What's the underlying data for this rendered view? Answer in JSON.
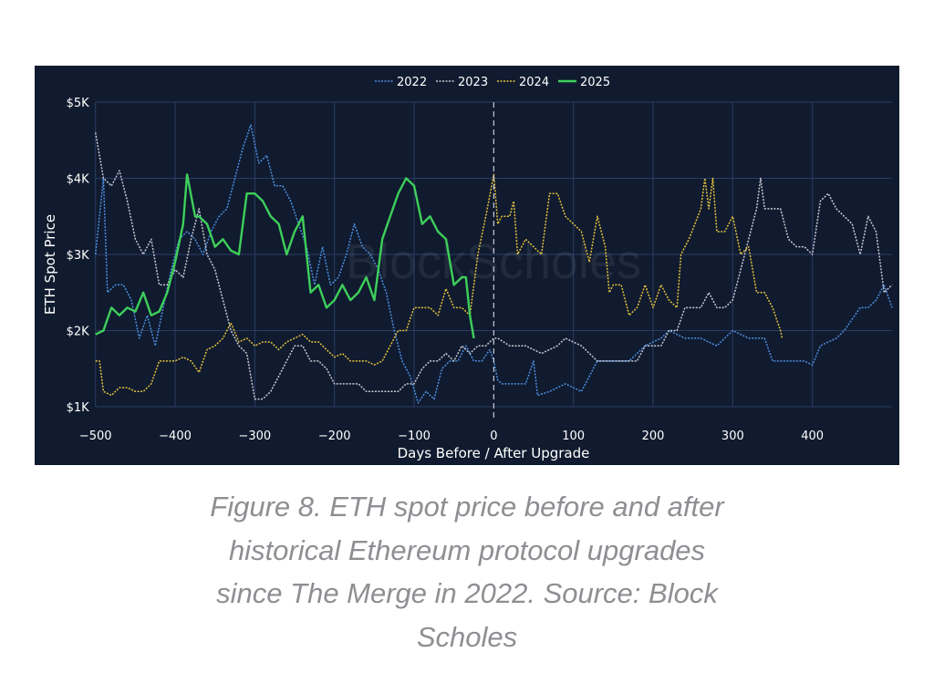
{
  "chart_data": {
    "type": "line",
    "title": "",
    "xlabel": "Days Before / After Upgrade",
    "ylabel": "ETH Spot Price",
    "xlim": [
      -500,
      500
    ],
    "ylim": [
      1000,
      5000
    ],
    "xticks": [
      -500,
      -400,
      -300,
      -200,
      -100,
      0,
      100,
      200,
      300,
      400
    ],
    "xtick_labels": [
      "−500",
      "−400",
      "−300",
      "−200",
      "−100",
      "0",
      "100",
      "200",
      "300",
      "400"
    ],
    "yticks": [
      1000,
      2000,
      3000,
      4000,
      5000
    ],
    "ytick_labels": [
      "$1K",
      "$2K",
      "$3K",
      "$4K",
      "$5K"
    ],
    "grid": true,
    "legend_position": "top-center",
    "upgrade_marker_x": 0,
    "watermark": "BlockScholes",
    "series": [
      {
        "name": "2022",
        "color": "#4d8fe0",
        "style": "dotted",
        "x": [
          -500,
          -490,
          -485,
          -475,
          -465,
          -455,
          -445,
          -435,
          -425,
          -415,
          -405,
          -395,
          -385,
          -375,
          -365,
          -355,
          -345,
          -335,
          -325,
          -315,
          -305,
          -295,
          -285,
          -275,
          -265,
          -255,
          -245,
          -235,
          -225,
          -215,
          -205,
          -195,
          -185,
          -175,
          -165,
          -155,
          -145,
          -135,
          -125,
          -115,
          -105,
          -95,
          -85,
          -75,
          -65,
          -55,
          -45,
          -35,
          -25,
          -15,
          -5,
          0,
          5,
          10,
          25,
          40,
          50,
          55,
          70,
          90,
          110,
          130,
          150,
          170,
          190,
          210,
          220,
          240,
          260,
          280,
          300,
          320,
          340,
          350,
          370,
          390,
          400,
          410,
          430,
          440,
          460,
          470,
          480,
          490,
          500
        ],
        "y": [
          3000,
          4000,
          2500,
          2600,
          2600,
          2400,
          1900,
          2200,
          1800,
          2300,
          2800,
          3200,
          3300,
          3200,
          3000,
          3300,
          3500,
          3600,
          4000,
          4400,
          4700,
          4200,
          4300,
          3900,
          3900,
          3700,
          3400,
          3100,
          2600,
          3100,
          2600,
          2700,
          3000,
          3400,
          3100,
          3000,
          2800,
          2500,
          2000,
          1600,
          1400,
          1050,
          1200,
          1100,
          1500,
          1600,
          1600,
          1800,
          1600,
          1600,
          1750,
          1600,
          1350,
          1300,
          1300,
          1300,
          1600,
          1150,
          1200,
          1300,
          1200,
          1600,
          1600,
          1600,
          1800,
          1900,
          2000,
          1900,
          1900,
          1800,
          2000,
          1900,
          1900,
          1600,
          1600,
          1600,
          1550,
          1800,
          1900,
          2000,
          2300,
          2300,
          2400,
          2600,
          2300
        ]
      },
      {
        "name": "2023",
        "color": "#c9cad3",
        "style": "dotted",
        "x": [
          -500,
          -490,
          -480,
          -470,
          -460,
          -450,
          -440,
          -430,
          -420,
          -410,
          -400,
          -390,
          -380,
          -370,
          -360,
          -350,
          -340,
          -330,
          -320,
          -310,
          -300,
          -290,
          -280,
          -270,
          -260,
          -250,
          -240,
          -230,
          -220,
          -210,
          -200,
          -190,
          -180,
          -170,
          -160,
          -150,
          -140,
          -130,
          -120,
          -110,
          -100,
          -90,
          -80,
          -70,
          -60,
          -50,
          -40,
          -30,
          -20,
          -10,
          0,
          5,
          20,
          40,
          60,
          80,
          90,
          110,
          130,
          150,
          170,
          180,
          190,
          210,
          220,
          230,
          240,
          260,
          270,
          280,
          290,
          300,
          310,
          320,
          330,
          335,
          340,
          350,
          360,
          370,
          380,
          390,
          400,
          410,
          420,
          430,
          440,
          450,
          460,
          470,
          480,
          490,
          500
        ],
        "y": [
          4600,
          4000,
          3900,
          4100,
          3700,
          3200,
          3000,
          3200,
          2600,
          2600,
          2800,
          2700,
          3200,
          3600,
          3000,
          2800,
          2400,
          2000,
          1800,
          1700,
          1100,
          1100,
          1200,
          1400,
          1600,
          1800,
          1800,
          1600,
          1600,
          1500,
          1300,
          1300,
          1300,
          1300,
          1200,
          1200,
          1200,
          1200,
          1200,
          1300,
          1300,
          1500,
          1600,
          1600,
          1700,
          1600,
          1800,
          1700,
          1800,
          1800,
          1900,
          1900,
          1800,
          1800,
          1700,
          1800,
          1900,
          1800,
          1600,
          1600,
          1600,
          1600,
          1800,
          1800,
          2000,
          2000,
          2300,
          2300,
          2500,
          2300,
          2300,
          2400,
          2800,
          3200,
          3600,
          4000,
          3600,
          3600,
          3600,
          3200,
          3100,
          3100,
          3000,
          3700,
          3800,
          3600,
          3500,
          3400,
          3000,
          3500,
          3300,
          2500,
          2600
        ]
      },
      {
        "name": "2024",
        "color": "#e6c23c",
        "style": "dotted",
        "x": [
          -500,
          -495,
          -490,
          -480,
          -470,
          -460,
          -450,
          -440,
          -430,
          -420,
          -410,
          -400,
          -390,
          -380,
          -370,
          -360,
          -350,
          -340,
          -330,
          -320,
          -310,
          -300,
          -290,
          -280,
          -270,
          -260,
          -250,
          -240,
          -230,
          -220,
          -210,
          -200,
          -190,
          -180,
          -170,
          -160,
          -150,
          -140,
          -130,
          -120,
          -110,
          -100,
          -90,
          -80,
          -70,
          -60,
          -50,
          -40,
          -30,
          -20,
          -10,
          0,
          5,
          10,
          20,
          25,
          30,
          40,
          50,
          60,
          70,
          80,
          90,
          100,
          110,
          120,
          130,
          140,
          145,
          150,
          160,
          170,
          180,
          190,
          200,
          210,
          220,
          230,
          235,
          245,
          260,
          265,
          270,
          275,
          280,
          290,
          300,
          310,
          320,
          330,
          340,
          350,
          360,
          362
        ],
        "y": [
          1600,
          1600,
          1200,
          1150,
          1250,
          1250,
          1200,
          1200,
          1300,
          1600,
          1600,
          1600,
          1650,
          1600,
          1450,
          1750,
          1800,
          1900,
          2100,
          1850,
          1900,
          1800,
          1850,
          1850,
          1750,
          1850,
          1900,
          1950,
          1850,
          1850,
          1750,
          1650,
          1700,
          1600,
          1600,
          1600,
          1550,
          1600,
          1800,
          2000,
          2000,
          2300,
          2300,
          2300,
          2200,
          2550,
          2300,
          2300,
          2200,
          3000,
          3500,
          4050,
          3400,
          3500,
          3500,
          3700,
          3000,
          3200,
          3100,
          3000,
          3800,
          3800,
          3500,
          3400,
          3300,
          2900,
          3500,
          3100,
          2500,
          2600,
          2600,
          2200,
          2300,
          2600,
          2300,
          2600,
          2400,
          2300,
          3000,
          3200,
          3600,
          4000,
          3600,
          4000,
          3300,
          3300,
          3500,
          3000,
          3100,
          2500,
          2500,
          2300,
          2000,
          1900
        ]
      },
      {
        "name": "2025",
        "color": "#3ecf5a",
        "style": "solid",
        "x": [
          -500,
          -490,
          -480,
          -470,
          -460,
          -450,
          -440,
          -430,
          -420,
          -410,
          -400,
          -390,
          -385,
          -375,
          -370,
          -360,
          -350,
          -340,
          -330,
          -320,
          -310,
          -300,
          -290,
          -280,
          -270,
          -260,
          -250,
          -240,
          -230,
          -220,
          -210,
          -200,
          -190,
          -180,
          -170,
          -160,
          -150,
          -140,
          -130,
          -120,
          -110,
          -100,
          -90,
          -80,
          -70,
          -60,
          -50,
          -40,
          -35,
          -30,
          -25
        ],
        "y": [
          1950,
          2000,
          2300,
          2200,
          2300,
          2250,
          2500,
          2200,
          2250,
          2500,
          2900,
          3400,
          4050,
          3500,
          3500,
          3400,
          3100,
          3200,
          3050,
          3000,
          3800,
          3800,
          3700,
          3500,
          3400,
          3000,
          3300,
          3500,
          2500,
          2600,
          2300,
          2400,
          2600,
          2400,
          2500,
          2700,
          2400,
          3200,
          3500,
          3800,
          4000,
          3900,
          3400,
          3500,
          3300,
          3200,
          2600,
          2700,
          2700,
          2200,
          1900
        ]
      }
    ]
  },
  "legend": [
    "2022",
    "2023",
    "2024",
    "2025"
  ],
  "caption": {
    "lines": [
      "Figure 8. ETH spot price before and after",
      "historical Ethereum protocol upgrades",
      "since The Merge in 2022. Source: Block",
      "Scholes"
    ]
  }
}
